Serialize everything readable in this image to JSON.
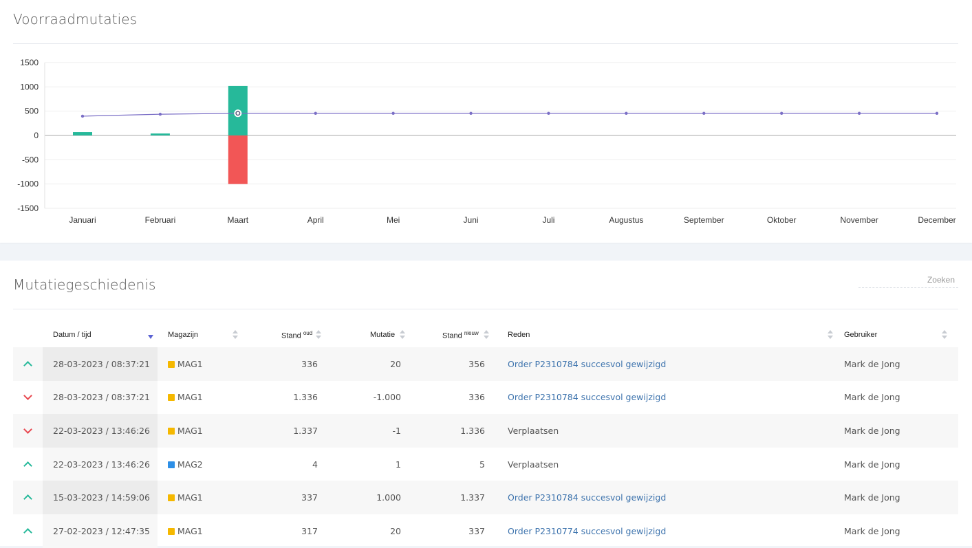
{
  "chart_card": {
    "title": "Voorraadmutaties"
  },
  "chart_data": {
    "type": "bar",
    "categories": [
      "Januari",
      "Februari",
      "Maart",
      "April",
      "Mei",
      "Juni",
      "Juli",
      "Augustus",
      "September",
      "Oktober",
      "November",
      "December"
    ],
    "series": [
      {
        "type": "bar",
        "color": "#26b99a",
        "values": [
          70,
          40,
          1020,
          0,
          0,
          0,
          0,
          0,
          0,
          0,
          0,
          0
        ]
      },
      {
        "type": "bar",
        "color": "#f25656",
        "values": [
          0,
          0,
          -1000,
          0,
          0,
          0,
          0,
          0,
          0,
          0,
          0,
          0
        ]
      },
      {
        "type": "line",
        "color": "#7b6fc6",
        "values": [
          397,
          437,
          456,
          456,
          456,
          456,
          456,
          456,
          456,
          456,
          456,
          456
        ]
      }
    ],
    "ylim": [
      -1500,
      1500
    ],
    "yticks": [
      1500,
      1000,
      500,
      0,
      -500,
      -1000,
      -1500
    ],
    "grid": true
  },
  "table_card": {
    "title": "Mutatiegeschiedenis",
    "search_placeholder": "Zoeken",
    "headers": {
      "datum": "Datum / tijd",
      "magazijn": "Magazijn",
      "stand_oud": "Stand",
      "stand_oud_sup": "oud",
      "mutatie": "Mutatie",
      "stand_nieuw": "Stand",
      "stand_nieuw_sup": "nieuw",
      "reden": "Reden",
      "gebruiker": "Gebruiker"
    },
    "colors": {
      "MAG1": "#f5b800",
      "MAG2": "#2d8fe6"
    },
    "rows": [
      {
        "dir": "up",
        "datum": "28-03-2023 / 08:37:21",
        "magazijn": "MAG1",
        "stand_oud": "336",
        "mutatie": "20",
        "stand_nieuw": "356",
        "reden": "Order P2310784 succesvol gewijzigd",
        "reden_link": true,
        "gebruiker": "Mark de Jong"
      },
      {
        "dir": "down",
        "datum": "28-03-2023 / 08:37:21",
        "magazijn": "MAG1",
        "stand_oud": "1.336",
        "mutatie": "-1.000",
        "stand_nieuw": "336",
        "reden": "Order P2310784 succesvol gewijzigd",
        "reden_link": true,
        "gebruiker": "Mark de Jong"
      },
      {
        "dir": "down",
        "datum": "22-03-2023 / 13:46:26",
        "magazijn": "MAG1",
        "stand_oud": "1.337",
        "mutatie": "-1",
        "stand_nieuw": "1.336",
        "reden": "Verplaatsen",
        "reden_link": false,
        "gebruiker": "Mark de Jong"
      },
      {
        "dir": "up",
        "datum": "22-03-2023 / 13:46:26",
        "magazijn": "MAG2",
        "stand_oud": "4",
        "mutatie": "1",
        "stand_nieuw": "5",
        "reden": "Verplaatsen",
        "reden_link": false,
        "gebruiker": "Mark de Jong"
      },
      {
        "dir": "up",
        "datum": "15-03-2023 / 14:59:06",
        "magazijn": "MAG1",
        "stand_oud": "337",
        "mutatie": "1.000",
        "stand_nieuw": "1.337",
        "reden": "Order P2310784 succesvol gewijzigd",
        "reden_link": true,
        "gebruiker": "Mark de Jong"
      },
      {
        "dir": "up",
        "datum": "27-02-2023 / 12:47:35",
        "magazijn": "MAG1",
        "stand_oud": "317",
        "mutatie": "20",
        "stand_nieuw": "337",
        "reden": "Order P2310774 succesvol gewijzigd",
        "reden_link": true,
        "gebruiker": "Mark de Jong"
      }
    ]
  }
}
